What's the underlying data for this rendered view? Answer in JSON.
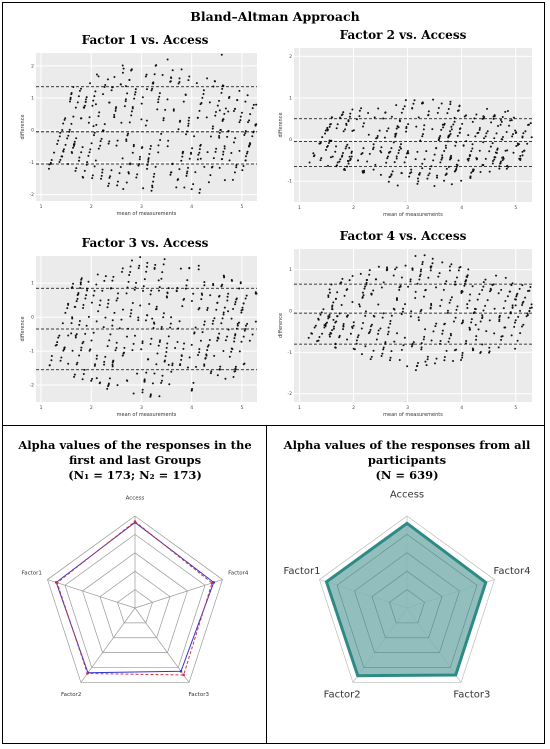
{
  "header": {
    "title": "Bland–Altman Approach"
  },
  "ba_plots": [
    {
      "title": "Factor 1 vs. Access",
      "xlabel": "mean of measurements",
      "ylabel": "difference",
      "xticks": [
        1,
        2,
        3,
        4,
        5
      ],
      "yticks": [
        -2,
        -1,
        0,
        1,
        2
      ],
      "xlim": [
        0.9,
        5.3
      ],
      "ylim": [
        -2.2,
        2.4
      ],
      "mean_diff": -0.05,
      "upper_loa": 1.35,
      "lower_loa": -1.05,
      "seed": 11
    },
    {
      "title": "Factor 2 vs. Access",
      "xlabel": "mean of measurements",
      "ylabel": "difference",
      "xticks": [
        1,
        2,
        3,
        4,
        5
      ],
      "yticks": [
        -1,
        0,
        1,
        2
      ],
      "xlim": [
        0.9,
        5.3
      ],
      "ylim": [
        -1.5,
        2.2
      ],
      "mean_diff": -0.05,
      "upper_loa": 0.5,
      "lower_loa": -0.65,
      "seed": 23
    },
    {
      "title": "Factor 3 vs. Access",
      "xlabel": "mean of measurements",
      "ylabel": "difference",
      "xticks": [
        1,
        2,
        3,
        4,
        5
      ],
      "yticks": [
        -2,
        -1,
        0,
        1
      ],
      "xlim": [
        0.9,
        5.3
      ],
      "ylim": [
        -2.5,
        1.8
      ],
      "mean_diff": -0.35,
      "upper_loa": 0.85,
      "lower_loa": -1.55,
      "seed": 37
    },
    {
      "title": "Factor 4 vs. Access",
      "xlabel": "mean of measurements",
      "ylabel": "difference",
      "xticks": [
        1,
        2,
        3,
        4,
        5
      ],
      "yticks": [
        -2,
        -1,
        0,
        1
      ],
      "xlim": [
        0.9,
        5.3
      ],
      "ylim": [
        -2.2,
        1.5
      ],
      "mean_diff": -0.05,
      "upper_loa": 0.65,
      "lower_loa": -0.8,
      "seed": 51
    }
  ],
  "alpha_left": {
    "title": "Alpha values of the responses in the first and last Groups",
    "subtitle": "(N₁ = 173; N₂ = 173)",
    "axes": [
      "Access",
      "Factor4",
      "Factor3",
      "Factor2",
      "Factor1"
    ],
    "rings": 5,
    "series": [
      {
        "color": "#3333cc",
        "values": [
          0.93,
          0.9,
          0.85,
          0.87,
          0.9
        ]
      },
      {
        "color": "#cc3344",
        "values": [
          0.94,
          0.88,
          0.9,
          0.88,
          0.89
        ]
      }
    ]
  },
  "alpha_right": {
    "title": "Alpha values of the responses from all participants",
    "subtitle": "(N = 639)",
    "axes": [
      "Access",
      "Factor4",
      "Factor3",
      "Factor2",
      "Factor1"
    ],
    "rings": 5,
    "fill_color": "#7fb4b2",
    "line_color": "#2e8a85",
    "values": [
      0.92,
      0.9,
      0.9,
      0.91,
      0.92
    ]
  }
}
